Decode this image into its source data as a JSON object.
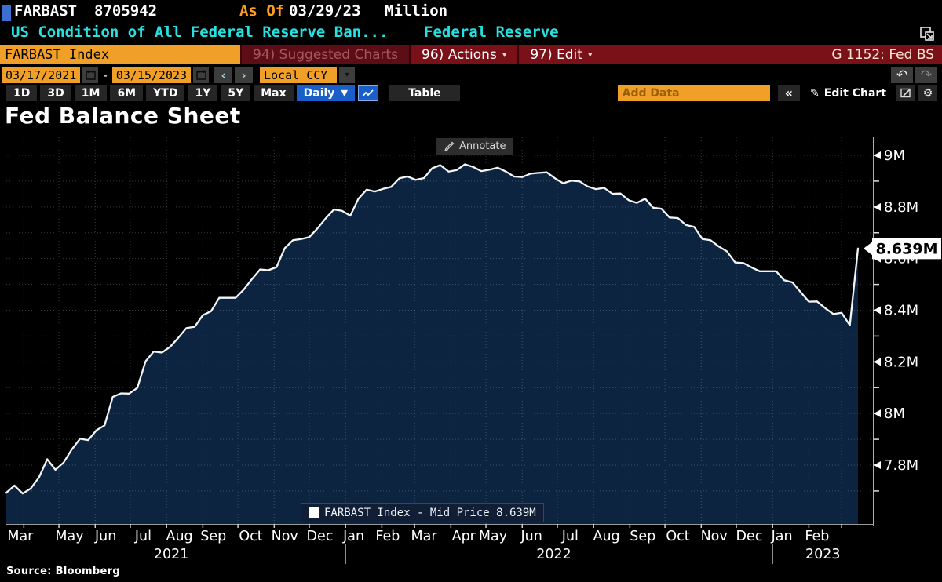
{
  "header": {
    "ticker": "FARBAST",
    "value": "8705942",
    "as_of_label": "As Of",
    "as_of_date": "03/29/23",
    "unit": "Million",
    "description": "US Condition of All Federal Reserve Ban...",
    "issuer": "Federal Reserve"
  },
  "toolbar": {
    "security_input": "FARBAST Index",
    "suggested_charts_label": "94) Suggested Charts",
    "actions_label": "96) Actions",
    "edit_label": "97) Edit",
    "chart_id": "G 1152: Fed BS"
  },
  "range_bar": {
    "start_date": "03/17/2021",
    "separator": "-",
    "end_date": "03/15/2023",
    "prev_label": "‹",
    "next_label": "›",
    "currency": "Local CCY",
    "undo_icon": "↶",
    "redo_icon": "↷"
  },
  "period_bar": {
    "periods": [
      "1D",
      "3D",
      "1M",
      "6M",
      "YTD",
      "1Y",
      "5Y",
      "Max"
    ],
    "frequency": "Daily",
    "frequency_caret": "▼",
    "table_label": "Table",
    "add_data_placeholder": "Add Data",
    "collapse_label": "«",
    "edit_chart_label": "Edit Chart",
    "pencil_icon": "✎",
    "gear_icon": "⚙"
  },
  "chart": {
    "title": "Fed Balance Sheet",
    "annotate_label": "Annotate",
    "legend": "FARBAST Index - Mid Price 8.639M",
    "source": "Source: Bloomberg"
  },
  "chart_data": {
    "type": "area",
    "title": "Fed Balance Sheet",
    "unit": "Million",
    "series_name": "FARBAST Index - Mid Price",
    "last_value": 8.639,
    "last_value_label": "8.639M",
    "ylim": [
      7.57,
      9.07
    ],
    "y_major_ticks": [
      {
        "label": "9M",
        "value": 9.0
      },
      {
        "label": "8.8M",
        "value": 8.8
      },
      {
        "label": "8.6M",
        "value": 8.6
      },
      {
        "label": "8.4M",
        "value": 8.4
      },
      {
        "label": "8.2M",
        "value": 8.2
      },
      {
        "label": "8M",
        "value": 8.0
      },
      {
        "label": "7.8M",
        "value": 7.8
      }
    ],
    "y_minor_step": 0.1,
    "x_start": "2021-03-17",
    "x_end": "2023-03-15",
    "month_labels": [
      {
        "label": "Mar",
        "date": "2021-03-29"
      },
      {
        "label": "May",
        "date": "2021-05-10"
      },
      {
        "label": "Jun",
        "date": "2021-06-10"
      },
      {
        "label": "Jul",
        "date": "2021-07-12"
      },
      {
        "label": "Aug",
        "date": "2021-08-12"
      },
      {
        "label": "Sep",
        "date": "2021-09-10"
      },
      {
        "label": "Oct",
        "date": "2021-10-12"
      },
      {
        "label": "Nov",
        "date": "2021-11-10"
      },
      {
        "label": "Dec",
        "date": "2021-12-10"
      },
      {
        "label": "Jan",
        "date": "2022-01-08"
      },
      {
        "label": "Feb",
        "date": "2022-02-06"
      },
      {
        "label": "Mar",
        "date": "2022-03-09"
      },
      {
        "label": "Apr",
        "date": "2022-04-12"
      },
      {
        "label": "May",
        "date": "2022-05-07"
      },
      {
        "label": "Jun",
        "date": "2022-06-09"
      },
      {
        "label": "Jul",
        "date": "2022-07-12"
      },
      {
        "label": "Aug",
        "date": "2022-08-12"
      },
      {
        "label": "Sep",
        "date": "2022-09-12"
      },
      {
        "label": "Oct",
        "date": "2022-10-12"
      },
      {
        "label": "Nov",
        "date": "2022-11-12"
      },
      {
        "label": "Dec",
        "date": "2022-12-12"
      },
      {
        "label": "Jan",
        "date": "2023-01-09"
      },
      {
        "label": "Feb",
        "date": "2023-02-08"
      }
    ],
    "year_labels": [
      {
        "label": "2021",
        "date": "2021-08-05"
      },
      {
        "label": "2022",
        "date": "2022-06-28"
      },
      {
        "label": "2023",
        "date": "2023-02-13"
      }
    ],
    "year_dividers": [
      "2022-01-01",
      "2023-01-01"
    ],
    "colors": {
      "fill": "#0d2440",
      "line": "#f2f5f8",
      "grid": "rgba(165,182,200,0.33)",
      "axis": "#e8e8e8"
    },
    "points": [
      [
        "2021-03-17",
        7.693
      ],
      [
        "2021-03-24",
        7.721
      ],
      [
        "2021-03-31",
        7.69
      ],
      [
        "2021-04-07",
        7.71
      ],
      [
        "2021-04-14",
        7.753
      ],
      [
        "2021-04-21",
        7.823
      ],
      [
        "2021-04-28",
        7.782
      ],
      [
        "2021-05-05",
        7.81
      ],
      [
        "2021-05-12",
        7.861
      ],
      [
        "2021-05-19",
        7.902
      ],
      [
        "2021-05-26",
        7.897
      ],
      [
        "2021-06-02",
        7.935
      ],
      [
        "2021-06-09",
        7.954
      ],
      [
        "2021-06-16",
        8.064
      ],
      [
        "2021-06-23",
        8.078
      ],
      [
        "2021-06-30",
        8.077
      ],
      [
        "2021-07-07",
        8.099
      ],
      [
        "2021-07-14",
        8.202
      ],
      [
        "2021-07-21",
        8.24
      ],
      [
        "2021-07-28",
        8.236
      ],
      [
        "2021-08-04",
        8.258
      ],
      [
        "2021-08-11",
        8.293
      ],
      [
        "2021-08-18",
        8.331
      ],
      [
        "2021-08-25",
        8.336
      ],
      [
        "2021-09-01",
        8.381
      ],
      [
        "2021-09-08",
        8.396
      ],
      [
        "2021-09-15",
        8.448
      ],
      [
        "2021-09-22",
        8.448
      ],
      [
        "2021-09-29",
        8.448
      ],
      [
        "2021-10-06",
        8.48
      ],
      [
        "2021-10-13",
        8.521
      ],
      [
        "2021-10-20",
        8.558
      ],
      [
        "2021-10-27",
        8.555
      ],
      [
        "2021-11-03",
        8.567
      ],
      [
        "2021-11-10",
        8.64
      ],
      [
        "2021-11-17",
        8.671
      ],
      [
        "2021-11-24",
        8.676
      ],
      [
        "2021-12-01",
        8.683
      ],
      [
        "2021-12-08",
        8.717
      ],
      [
        "2021-12-15",
        8.756
      ],
      [
        "2021-12-22",
        8.79
      ],
      [
        "2021-12-29",
        8.785
      ],
      [
        "2022-01-05",
        8.766
      ],
      [
        "2022-01-12",
        8.832
      ],
      [
        "2022-01-19",
        8.867
      ],
      [
        "2022-01-26",
        8.86
      ],
      [
        "2022-02-02",
        8.87
      ],
      [
        "2022-02-09",
        8.878
      ],
      [
        "2022-02-16",
        8.911
      ],
      [
        "2022-02-23",
        8.918
      ],
      [
        "2022-03-02",
        8.905
      ],
      [
        "2022-03-09",
        8.912
      ],
      [
        "2022-03-16",
        8.95
      ],
      [
        "2022-03-23",
        8.962
      ],
      [
        "2022-03-30",
        8.937
      ],
      [
        "2022-04-06",
        8.943
      ],
      [
        "2022-04-13",
        8.965
      ],
      [
        "2022-04-20",
        8.955
      ],
      [
        "2022-04-27",
        8.939
      ],
      [
        "2022-05-04",
        8.944
      ],
      [
        "2022-05-11",
        8.952
      ],
      [
        "2022-05-18",
        8.937
      ],
      [
        "2022-05-25",
        8.918
      ],
      [
        "2022-06-01",
        8.916
      ],
      [
        "2022-06-08",
        8.929
      ],
      [
        "2022-06-15",
        8.932
      ],
      [
        "2022-06-22",
        8.934
      ],
      [
        "2022-06-29",
        8.911
      ],
      [
        "2022-07-06",
        8.892
      ],
      [
        "2022-07-13",
        8.902
      ],
      [
        "2022-07-20",
        8.899
      ],
      [
        "2022-07-27",
        8.879
      ],
      [
        "2022-08-03",
        8.869
      ],
      [
        "2022-08-10",
        8.874
      ],
      [
        "2022-08-17",
        8.851
      ],
      [
        "2022-08-24",
        8.852
      ],
      [
        "2022-08-31",
        8.826
      ],
      [
        "2022-09-07",
        8.816
      ],
      [
        "2022-09-14",
        8.832
      ],
      [
        "2022-09-21",
        8.797
      ],
      [
        "2022-09-28",
        8.793
      ],
      [
        "2022-10-05",
        8.759
      ],
      [
        "2022-10-12",
        8.757
      ],
      [
        "2022-10-19",
        8.73
      ],
      [
        "2022-10-26",
        8.723
      ],
      [
        "2022-11-02",
        8.676
      ],
      [
        "2022-11-09",
        8.671
      ],
      [
        "2022-11-16",
        8.647
      ],
      [
        "2022-11-23",
        8.628
      ],
      [
        "2022-11-30",
        8.585
      ],
      [
        "2022-12-07",
        8.583
      ],
      [
        "2022-12-14",
        8.566
      ],
      [
        "2022-12-21",
        8.551
      ],
      [
        "2022-12-28",
        8.551
      ],
      [
        "2023-01-04",
        8.551
      ],
      [
        "2023-01-11",
        8.516
      ],
      [
        "2023-01-18",
        8.508
      ],
      [
        "2023-01-25",
        8.47
      ],
      [
        "2023-02-01",
        8.433
      ],
      [
        "2023-02-08",
        8.434
      ],
      [
        "2023-02-15",
        8.408
      ],
      [
        "2023-02-22",
        8.385
      ],
      [
        "2023-03-01",
        8.39
      ],
      [
        "2023-03-08",
        8.342
      ],
      [
        "2023-03-15",
        8.639
      ]
    ]
  }
}
